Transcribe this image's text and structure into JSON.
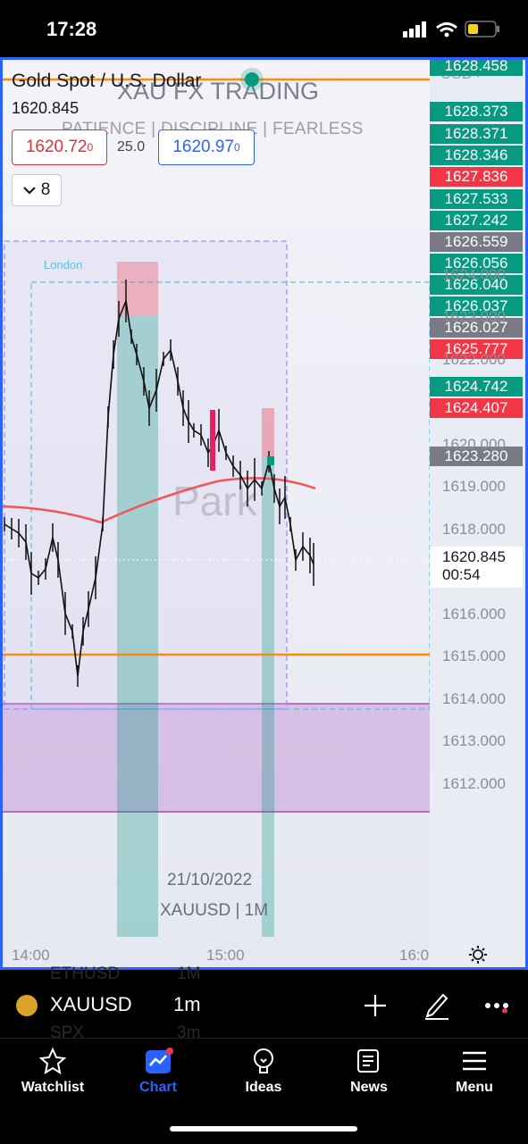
{
  "status_bar": {
    "time": "17:28"
  },
  "chart": {
    "symbol_title": "Gold Spot / U.S. Dollar",
    "last_price": "1620.845",
    "watermark_title": "XAU FX TRADING",
    "watermark_subtitle": "PATIENCE  |  DISCIPLINE  |  FEARLESS",
    "watermark_center": "Park",
    "sell_price": "1620.72",
    "sell_price_sup": "0",
    "spread": "25.0",
    "buy_price": "1620.97",
    "buy_price_sup": "0",
    "indicators_count": "8",
    "currency": "USD",
    "session_label": "London",
    "date_label": "21/10/2022",
    "symbol_interval_label": "XAUUSD | 1M",
    "current_price_tag": "1620.845",
    "countdown": "00:54",
    "accent_color": "#2962ff"
  },
  "price_tags": [
    {
      "value": "1628.458",
      "color": "green"
    },
    {
      "value": "1628.373",
      "color": "green"
    },
    {
      "value": "1628.371",
      "color": "green"
    },
    {
      "value": "1628.346",
      "color": "green"
    },
    {
      "value": "1627.836",
      "color": "red"
    },
    {
      "value": "1627.533",
      "color": "green"
    },
    {
      "value": "1627.242",
      "color": "green"
    },
    {
      "value": "1626.559",
      "color": "gray"
    },
    {
      "value": "1626.056",
      "color": "green"
    },
    {
      "value": "1626.040",
      "color": "green"
    },
    {
      "value": "1626.037",
      "color": "green"
    },
    {
      "value": "1626.027",
      "color": "gray"
    },
    {
      "value": "1625.777",
      "color": "red"
    },
    {
      "value": "1624.742",
      "color": "green"
    },
    {
      "value": "1624.407",
      "color": "red"
    },
    {
      "value": "1623.280",
      "color": "gray"
    }
  ],
  "price_axis": [
    "1624.000",
    "1623.000",
    "1622.000",
    "1620.000",
    "1619.000",
    "1618.000",
    "1617.000",
    "1616.000",
    "1615.000",
    "1614.000",
    "1613.000",
    "1612.000"
  ],
  "time_axis": [
    "14:00",
    "15:00",
    "16:0"
  ],
  "toolbar": {
    "symbol": "XAUUSD",
    "interval": "1m",
    "ghost_1": "ETHUSD",
    "ghost_1b": "1M",
    "ghost_2": "SPX",
    "ghost_2b": "3m"
  },
  "tabs": [
    {
      "label": "Watchlist",
      "icon": "star-icon",
      "active": false
    },
    {
      "label": "Chart",
      "icon": "chart-icon",
      "active": true
    },
    {
      "label": "Ideas",
      "icon": "lightbulb-icon",
      "active": false
    },
    {
      "label": "News",
      "icon": "news-icon",
      "active": false
    },
    {
      "label": "Menu",
      "icon": "hamburger-icon",
      "active": false
    }
  ]
}
